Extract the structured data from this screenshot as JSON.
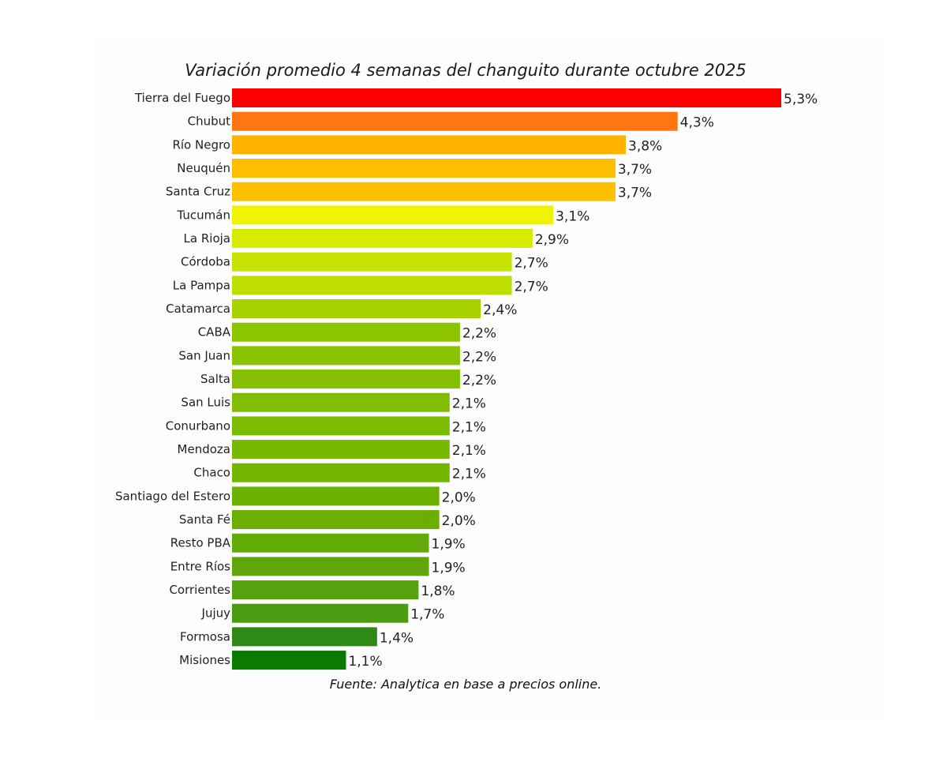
{
  "chart_data": {
    "type": "bar",
    "orientation": "horizontal",
    "title": "Variación promedio 4 semanas del changuito durante octubre 2025",
    "source": "Fuente: Analytica en base a precios online.",
    "xlabel": "",
    "ylabel": "",
    "xlim": [
      0,
      5.3
    ],
    "grid": false,
    "legend": "none",
    "value_suffix": "%",
    "categories": [
      "Tierra del Fuego",
      "Chubut",
      "Río Negro",
      "Neuquén",
      "Santa Cruz",
      "Tucumán",
      "La Rioja",
      "Córdoba",
      "La Pampa",
      "Catamarca",
      "CABA",
      "San Juan",
      "Salta",
      "San Luis",
      "Conurbano",
      "Mendoza",
      "Chaco",
      "Santiago del Estero",
      "Santa Fé",
      "Resto PBA",
      "Entre Ríos",
      "Corrientes",
      "Jujuy",
      "Formosa",
      "Misiones"
    ],
    "values": [
      5.3,
      4.3,
      3.8,
      3.7,
      3.7,
      3.1,
      2.9,
      2.7,
      2.7,
      2.4,
      2.2,
      2.2,
      2.2,
      2.1,
      2.1,
      2.1,
      2.1,
      2.0,
      2.0,
      1.9,
      1.9,
      1.8,
      1.7,
      1.4,
      1.1
    ],
    "labels": [
      "5,3%",
      "4,3%",
      "3,8%",
      "3,7%",
      "3,7%",
      "3,1%",
      "2,9%",
      "2,7%",
      "2,7%",
      "2,4%",
      "2,2%",
      "2,2%",
      "2,2%",
      "2,1%",
      "2,1%",
      "2,1%",
      "2,1%",
      "2,0%",
      "2,0%",
      "1,9%",
      "1,9%",
      "1,8%",
      "1,7%",
      "1,4%",
      "1,1%"
    ],
    "colors": [
      "#ff0000",
      "#ff7510",
      "#fdb300",
      "#fdbd00",
      "#fcc000",
      "#eff500",
      "#d8ea00",
      "#c6e200",
      "#bedd00",
      "#a8d200",
      "#8cc400",
      "#88c200",
      "#84c000",
      "#7fbd00",
      "#7bbb00",
      "#77b800",
      "#74b500",
      "#6cb000",
      "#6aaf00",
      "#63ab08",
      "#5ea60a",
      "#57a20f",
      "#4c9c12",
      "#2e8a14",
      "#0a7a00"
    ]
  }
}
